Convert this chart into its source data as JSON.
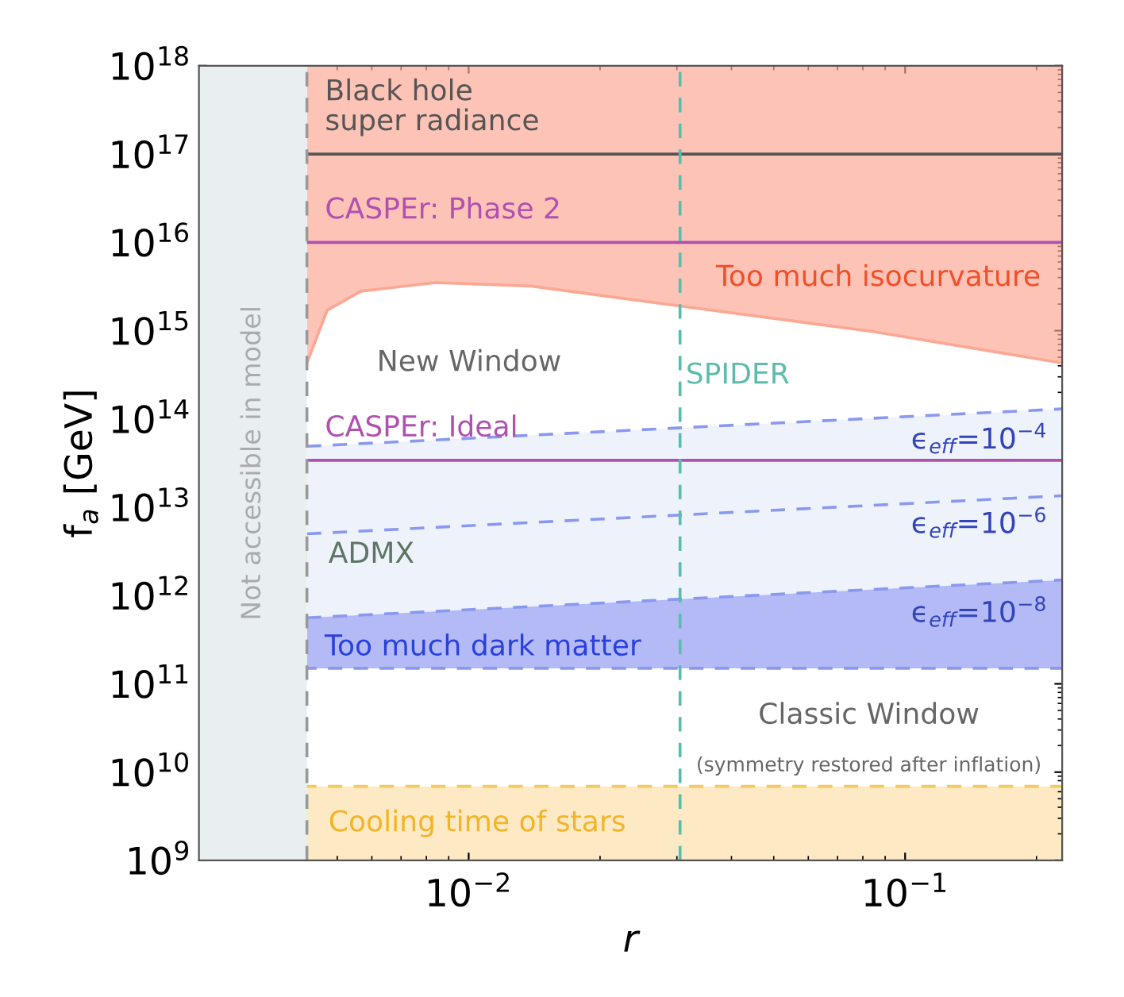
{
  "chart_data": {
    "type": "line",
    "xlabel": "r",
    "ylabel": "f$_{a}$ [GeV]",
    "log": "xy",
    "xlim": [
      0.00241,
      0.229
    ],
    "ylim": [
      1000000000.0,
      1e+18
    ],
    "xticks": [
      {
        "value": 0.01,
        "label": "10$^{−2}$"
      },
      {
        "value": 0.1,
        "label": "10$^{−1}$"
      }
    ],
    "yticks": [
      {
        "value": 1000000000.0,
        "label": "10$^{9}$"
      },
      {
        "value": 10000000000.0,
        "label": "10$^{10}$"
      },
      {
        "value": 100000000000.0,
        "label": "10$^{11}$"
      },
      {
        "value": 1000000000000.0,
        "label": "10$^{12}$"
      },
      {
        "value": 10000000000000.0,
        "label": "10$^{13}$"
      },
      {
        "value": 100000000000000.0,
        "label": "10$^{14}$"
      },
      {
        "value": 1000000000000000.0,
        "label": "10$^{15}$"
      },
      {
        "value": 1e+16,
        "label": "10$^{16}$"
      },
      {
        "value": 1e+17,
        "label": "10$^{17}$"
      },
      {
        "value": 1e+18,
        "label": "10$^{18}$"
      }
    ],
    "grid": false,
    "series": [
      {
        "color": "#fca793",
        "line_style": "solid",
        "x": [
          0.00426,
          0.00474,
          0.00566,
          0.0084,
          0.0139,
          0.0305,
          0.084,
          0.229
        ],
        "values": [
          430000000000000.0,
          1700000000000000.0,
          2800000000000000.0,
          3500000000000000.0,
          3200000000000000.0,
          1900000000000000.0,
          980000000000000.0,
          430000000000000.0
        ],
        "lower": [
          430000000000000.0,
          1700000000000000.0,
          2800000000000000.0,
          3500000000000000.0,
          3200000000000000.0,
          1900000000000000.0,
          980000000000000.0,
          430000000000000.0
        ],
        "upper": [
          1e+18,
          1e+18,
          1e+18,
          1e+18,
          1e+18,
          1e+18,
          1e+18,
          1e+18
        ]
      },
      {
        "color": "#8a98f0",
        "line_style": "dashed",
        "x": [
          0.00426,
          0.229
        ],
        "values": [
          49000000000000.0,
          130000000000000.0
        ],
        "lower": [
          560000000000.0,
          1500000000000.0
        ],
        "upper": [
          49000000000000.0,
          130000000000000.0
        ]
      },
      {
        "color": "#8a98f0",
        "line_style": "dashed",
        "x": [
          0.00426,
          0.229
        ],
        "values": [
          5000000000000.0,
          13500000000000.0
        ]
      },
      {
        "color": "#8a98f0",
        "line_style": "dashed",
        "x": [
          0.00426,
          0.229
        ],
        "values": [
          560000000000.0,
          1500000000000.0
        ],
        "lower": [
          150000000000.0,
          150000000000.0
        ],
        "upper": [
          560000000000.0,
          1500000000000.0
        ]
      }
    ],
    "bands": [
      {
        "axis": "y",
        "from": 2200000000000.0,
        "to": 3800000000000.0,
        "label": "ADMX",
        "color": "#a9d5b5"
      },
      {
        "axis": "y",
        "from": 1000000000.0,
        "to": 6900000000.0,
        "label": "Cooling time of stars",
        "color": "#fde9c4"
      },
      {
        "axis": "x",
        "from": 0.00241,
        "to": 0.00426,
        "label": "Not accessible in model",
        "color": "#e9eff1"
      }
    ],
    "ref_lines": [
      {
        "axis": "y",
        "value": 1e+17,
        "label": "Black hole\nsuper radiance",
        "color": "#555555",
        "line_style": "solid"
      },
      {
        "axis": "y",
        "value": 1e+16,
        "label": "CASPEr: Phase 2",
        "color": "#b050b0",
        "line_style": "solid"
      },
      {
        "axis": "y",
        "value": 34000000000000.0,
        "label": "CASPEr: Ideal",
        "color": "#b050b0",
        "line_style": "solid"
      },
      {
        "axis": "y",
        "value": 150000000000.0,
        "color": "#8a98f0",
        "line_style": "dashed"
      },
      {
        "axis": "y",
        "value": 6900000000.0,
        "color": "#f5c860",
        "line_style": "dashed"
      },
      {
        "axis": "x",
        "value": 0.00426,
        "color": "#999999",
        "line_style": "dashed"
      },
      {
        "axis": "x",
        "value": 0.0305,
        "label": "SPIDER",
        "color": "#5cbcac",
        "line_style": "dashed"
      }
    ],
    "annotations": [
      "Too much isocurvature",
      "New Window",
      "ϵ$_{eff}$=10$^{−4}$",
      "ϵ$_{eff}$=10$^{−6}$",
      "ϵ$_{eff}$=10$^{−8}$",
      "Too much dark matter",
      "Classic Window",
      "(symmetry restored after inflation)"
    ]
  }
}
